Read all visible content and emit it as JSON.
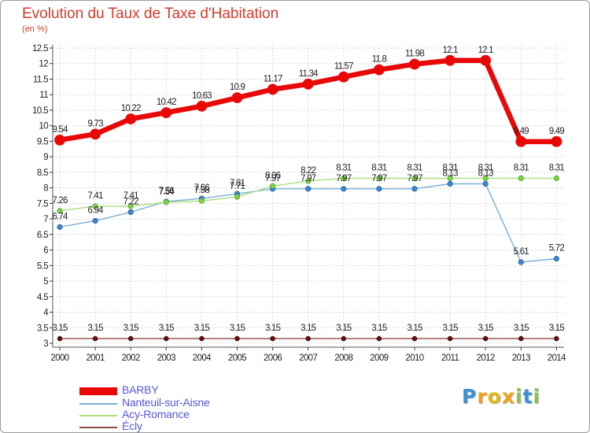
{
  "chart_data": {
    "type": "line",
    "title": "Evolution du Taux de Taxe d'Habitation",
    "subtitle": "(en %)",
    "x": [
      "2000",
      "2001",
      "2002",
      "2003",
      "2004",
      "2005",
      "2006",
      "2007",
      "2008",
      "2009",
      "2010",
      "2011",
      "2012",
      "2013",
      "2014"
    ],
    "y_ticks": [
      "3",
      "3.5",
      "4",
      "4.5",
      "5",
      "5.5",
      "6",
      "6.5",
      "7",
      "7.5",
      "8",
      "8.5",
      "9",
      "9.5",
      "10",
      "10.5",
      "11",
      "11.5",
      "12",
      "12.5"
    ],
    "ylim": [
      3,
      12.5
    ],
    "grid": true,
    "legend_position": "bottom-left",
    "series": [
      {
        "name": "BARBY",
        "color": "#e80808",
        "values": [
          9.54,
          9.73,
          10.22,
          10.42,
          10.63,
          10.9,
          11.17,
          11.34,
          11.57,
          11.8,
          11.98,
          12.1,
          12.1,
          9.49,
          9.49
        ],
        "labels": [
          "9.54",
          "9.73",
          "10.22",
          "10.42",
          "10.63",
          "10.9",
          "11.17",
          "11.34",
          "11.57",
          "11.8",
          "11.98",
          "12.1",
          "12.1",
          "9.49",
          "9.49"
        ]
      },
      {
        "name": "Nanteuil-sur-Aisne",
        "color": "#5a9ad2",
        "values": [
          6.74,
          6.94,
          7.22,
          7.56,
          7.66,
          7.81,
          7.97,
          7.97,
          7.97,
          7.97,
          7.97,
          8.13,
          8.13,
          5.61,
          5.72
        ],
        "labels": [
          "6.74",
          "6.94",
          "7.22",
          "7.56",
          "7.66",
          "7.81",
          "7.97",
          "7.97",
          "7.97",
          "7.97",
          "7.97",
          "8.13",
          "8.13",
          "5.61",
          "5.72"
        ]
      },
      {
        "name": "Acy-Romance",
        "color": "#8ed85a",
        "values": [
          7.26,
          7.41,
          7.41,
          7.54,
          7.58,
          7.71,
          8.06,
          8.22,
          8.31,
          8.31,
          8.31,
          8.31,
          8.31,
          8.31,
          8.31
        ],
        "labels": [
          "7.26",
          "7.41",
          "7.41",
          "7.54",
          "7.58",
          "7.71",
          "8.06",
          "8.22",
          "8.31",
          "8.31",
          "8.31",
          "8.31",
          "8.31",
          "8.31",
          "8.31"
        ]
      },
      {
        "name": "Écly",
        "color": "#7a2a2a",
        "values": [
          3.15,
          3.15,
          3.15,
          3.15,
          3.15,
          3.15,
          3.15,
          3.15,
          3.15,
          3.15,
          3.15,
          3.15,
          3.15,
          3.15,
          3.15
        ],
        "labels": [
          "3.15",
          "3.15",
          "3.15",
          "3.15",
          "3.15",
          "3.15",
          "3.15",
          "3.15",
          "3.15",
          "3.15",
          "3.15",
          "3.15",
          "3.15",
          "3.15",
          "3.15"
        ]
      }
    ]
  },
  "logo": {
    "letters": [
      "P",
      "r",
      "o",
      "x",
      "i",
      "t",
      "i"
    ],
    "colors": [
      "#3d8fd6",
      "#f0a21c",
      "#e0b812",
      "#f0a21c",
      "#8bc34a",
      "#3d8fd6",
      "#8bc34a"
    ]
  }
}
